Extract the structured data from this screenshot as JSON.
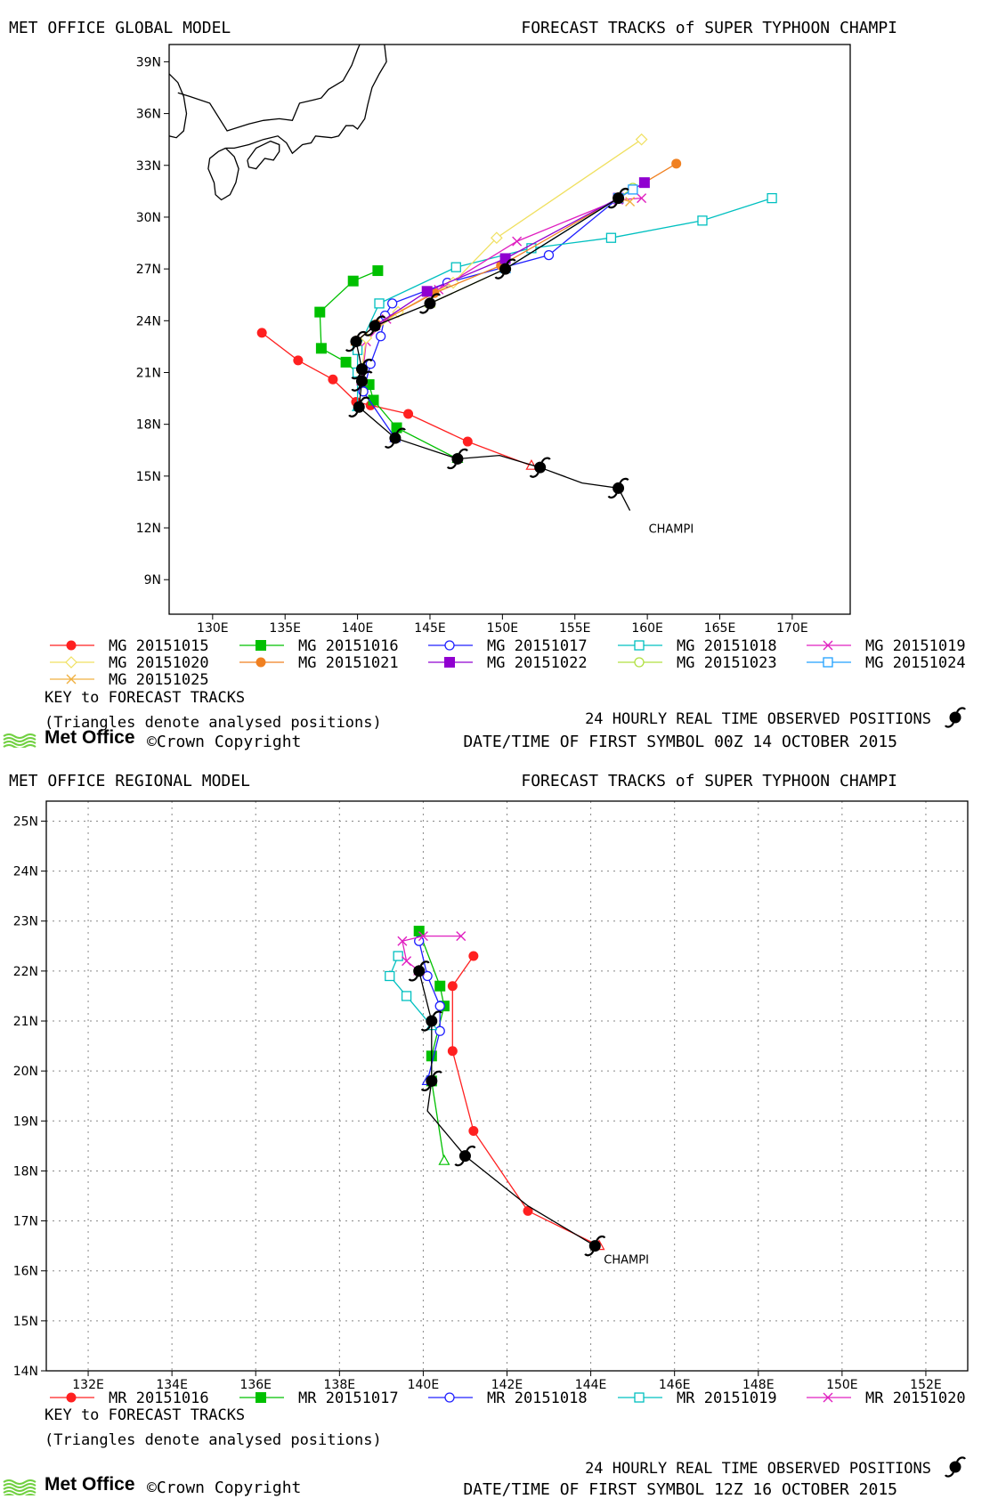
{
  "global": {
    "model_title": "MET OFFICE GLOBAL MODEL",
    "forecast_title": "FORECAST TRACKS of SUPER TYPHOON CHAMPI",
    "storm_label": "CHAMPI",
    "key_title": "KEY to FORECAST TRACKS",
    "triangles_note": "(Triangles denote analysed positions)",
    "observed_note": "24 HOURLY REAL TIME OBSERVED POSITIONS",
    "first_symbol": "DATE/TIME OF FIRST SYMBOL 00Z 14 OCTOBER 2015",
    "logo": "Met Office",
    "copyright": "©Crown Copyright"
  },
  "regional": {
    "model_title": "MET OFFICE REGIONAL MODEL",
    "forecast_title": "FORECAST TRACKS of SUPER TYPHOON CHAMPI",
    "storm_label": "CHAMPI",
    "key_title": "KEY to FORECAST TRACKS",
    "triangles_note": "(Triangles denote analysed positions)",
    "observed_note": "24 HOURLY REAL TIME OBSERVED POSITIONS",
    "first_symbol": "DATE/TIME OF FIRST SYMBOL 12Z 16 OCTOBER 2015",
    "logo": "Met Office",
    "copyright": "©Crown Copyright"
  },
  "chart_data": [
    {
      "type": "line",
      "xlim": [
        127,
        174
      ],
      "ylim": [
        7,
        40
      ],
      "x_ticks": [
        130,
        135,
        140,
        145,
        150,
        155,
        160,
        165,
        170
      ],
      "x_tick_labels": [
        "130E",
        "135E",
        "140E",
        "145E",
        "150E",
        "155E",
        "160E",
        "165E",
        "170E"
      ],
      "y_ticks": [
        9,
        12,
        15,
        18,
        21,
        24,
        27,
        30,
        33,
        36,
        39
      ],
      "y_tick_labels": [
        "9N",
        "12N",
        "15N",
        "18N",
        "21N",
        "24N",
        "27N",
        "30N",
        "33N",
        "36N",
        "39N"
      ],
      "grid": false,
      "observed": {
        "color": "#000000",
        "points": [
          [
            158.8,
            13.0
          ],
          [
            158,
            14.3
          ],
          [
            155.5,
            14.6
          ],
          [
            152.6,
            15.5
          ],
          [
            149.8,
            16.2
          ],
          [
            146.9,
            16.0
          ],
          [
            142.6,
            17.2
          ],
          [
            140.1,
            19.0
          ],
          [
            140.3,
            20.5
          ],
          [
            140.3,
            21.2
          ],
          [
            139.9,
            22.8
          ],
          [
            141.2,
            23.7
          ],
          [
            145.0,
            25.0
          ],
          [
            150.2,
            27.0
          ],
          [
            158.0,
            31.1
          ]
        ],
        "symbols": [
          [
            158,
            14.3
          ],
          [
            152.6,
            15.5
          ],
          [
            146.9,
            16.0
          ],
          [
            142.6,
            17.2
          ],
          [
            140.1,
            19.0
          ],
          [
            140.3,
            20.5
          ],
          [
            140.3,
            21.2
          ],
          [
            139.9,
            22.8
          ],
          [
            141.2,
            23.7
          ],
          [
            145.0,
            25.0
          ],
          [
            150.2,
            27.0
          ],
          [
            158.0,
            31.1
          ]
        ]
      },
      "series": [
        {
          "name": "MG 20151015",
          "color": "#ff2020",
          "marker": "dot",
          "points": [
            [
              152.0,
              15.6
            ],
            [
              147.6,
              17.0
            ],
            [
              143.5,
              18.6
            ],
            [
              140.9,
              19.1
            ],
            [
              139.9,
              19.3
            ],
            [
              138.3,
              20.6
            ],
            [
              135.9,
              21.7
            ],
            [
              133.4,
              23.3
            ]
          ]
        },
        {
          "name": "MG 20151016",
          "color": "#00c000",
          "marker": "square",
          "points": [
            [
              146.9,
              16.0
            ],
            [
              142.7,
              17.8
            ],
            [
              141.1,
              19.4
            ],
            [
              140.8,
              20.3
            ],
            [
              139.2,
              21.6
            ],
            [
              137.5,
              22.4
            ],
            [
              137.4,
              24.5
            ],
            [
              139.7,
              26.3
            ],
            [
              141.4,
              26.9
            ]
          ]
        },
        {
          "name": "MG 20151017",
          "color": "#2020ff",
          "marker": "circle",
          "points": [
            [
              142.6,
              17.2
            ],
            [
              140.4,
              19.9
            ],
            [
              140.9,
              21.5
            ],
            [
              141.6,
              23.1
            ],
            [
              141.9,
              24.3
            ],
            [
              142.4,
              25.0
            ],
            [
              146.2,
              26.2
            ],
            [
              153.2,
              27.8
            ],
            [
              158.0,
              31.1
            ]
          ]
        },
        {
          "name": "MG 20151018",
          "color": "#00c0c0",
          "marker": "open_square",
          "points": [
            [
              140.0,
              19.0
            ],
            [
              140.0,
              21.0
            ],
            [
              140.0,
              22.3
            ],
            [
              141.5,
              25.0
            ],
            [
              146.8,
              27.1
            ],
            [
              152.0,
              28.2
            ],
            [
              157.5,
              28.8
            ],
            [
              163.8,
              29.8
            ],
            [
              168.6,
              31.1
            ]
          ]
        },
        {
          "name": "MG 20151019",
          "color": "#e020c0",
          "marker": "x",
          "points": [
            [
              140.3,
              20.5
            ],
            [
              140.6,
              22.8
            ],
            [
              142.0,
              24.1
            ],
            [
              145.6,
              25.8
            ],
            [
              151.0,
              28.6
            ],
            [
              158.0,
              31.0
            ],
            [
              159.6,
              31.1
            ]
          ]
        },
        {
          "name": "MG 20151020",
          "color": "#f0e060",
          "marker": "diamond",
          "points": [
            [
              140.3,
              21.2
            ],
            [
              140.6,
              23.0
            ],
            [
              142.8,
              24.5
            ],
            [
              146.6,
              26.2
            ],
            [
              149.6,
              28.8
            ],
            [
              159.6,
              34.5
            ]
          ]
        },
        {
          "name": "MG 20151021",
          "color": "#f08020",
          "marker": "dot",
          "points": [
            [
              139.9,
              22.8
            ],
            [
              141.3,
              23.8
            ],
            [
              145.3,
              25.6
            ],
            [
              149.9,
              27.2
            ],
            [
              158.0,
              31.1
            ],
            [
              162.0,
              33.1
            ]
          ]
        },
        {
          "name": "MG 20151022",
          "color": "#9000d0",
          "marker": "square",
          "points": [
            [
              141.2,
              23.7
            ],
            [
              144.8,
              25.7
            ],
            [
              150.2,
              27.6
            ],
            [
              158.0,
              31.1
            ],
            [
              159.8,
              32.0
            ]
          ]
        },
        {
          "name": "MG 20151023",
          "color": "#b0e040",
          "marker": "open_circle",
          "points": [
            [
              145.0,
              25.0
            ],
            [
              150.2,
              27.0
            ],
            [
              158.0,
              31.1
            ],
            [
              159.0,
              31.7
            ]
          ]
        },
        {
          "name": "MG 20151024",
          "color": "#20a0ff",
          "marker": "open_square",
          "points": [
            [
              150.2,
              27.0
            ],
            [
              158.0,
              31.1
            ],
            [
              159.0,
              31.6
            ]
          ]
        },
        {
          "name": "MG 20151025",
          "color": "#f0b040",
          "marker": "x",
          "points": [
            [
              158.0,
              31.1
            ],
            [
              158.8,
              30.9
            ]
          ]
        }
      ]
    },
    {
      "type": "line",
      "xlim": [
        131,
        153
      ],
      "ylim": [
        14,
        25.4
      ],
      "x_ticks": [
        132,
        134,
        136,
        138,
        140,
        142,
        144,
        146,
        148,
        150,
        152
      ],
      "x_tick_labels": [
        "132E",
        "134E",
        "136E",
        "138E",
        "140E",
        "142E",
        "144E",
        "146E",
        "148E",
        "150E",
        "152E"
      ],
      "y_ticks": [
        14,
        15,
        16,
        17,
        18,
        19,
        20,
        21,
        22,
        23,
        24,
        25
      ],
      "y_tick_labels": [
        "14N",
        "15N",
        "16N",
        "17N",
        "18N",
        "19N",
        "20N",
        "21N",
        "22N",
        "23N",
        "24N",
        " 25N"
      ],
      "grid": true,
      "observed": {
        "color": "#000000",
        "points": [
          [
            144.1,
            16.5
          ],
          [
            142.5,
            17.3
          ],
          [
            141.0,
            18.3
          ],
          [
            140.1,
            19.2
          ],
          [
            140.2,
            19.8
          ],
          [
            140.2,
            21.0
          ],
          [
            139.9,
            22.0
          ]
        ],
        "symbols": [
          [
            144.1,
            16.5
          ],
          [
            141.0,
            18.3
          ],
          [
            140.2,
            19.8
          ],
          [
            140.2,
            21.0
          ],
          [
            139.9,
            22.0
          ]
        ]
      },
      "series": [
        {
          "name": "MR 20151016",
          "color": "#ff2020",
          "marker": "dot",
          "points": [
            [
              144.2,
              16.5
            ],
            [
              142.5,
              17.2
            ],
            [
              141.2,
              18.8
            ],
            [
              140.7,
              20.4
            ],
            [
              140.7,
              21.7
            ],
            [
              141.2,
              22.3
            ]
          ]
        },
        {
          "name": "MR 20151017",
          "color": "#00c000",
          "marker": "square",
          "points": [
            [
              140.5,
              18.2
            ],
            [
              140.2,
              19.8
            ],
            [
              140.2,
              20.3
            ],
            [
              140.5,
              21.3
            ],
            [
              140.4,
              21.7
            ],
            [
              139.9,
              22.8
            ]
          ]
        },
        {
          "name": "MR 20151018",
          "color": "#2020ff",
          "marker": "circle",
          "points": [
            [
              140.1,
              19.8
            ],
            [
              140.4,
              20.8
            ],
            [
              140.4,
              21.3
            ],
            [
              140.1,
              21.9
            ],
            [
              139.9,
              22.6
            ]
          ]
        },
        {
          "name": "MR 20151019",
          "color": "#00c0c0",
          "marker": "open_square",
          "points": [
            [
              140.2,
              20.9
            ],
            [
              139.6,
              21.5
            ],
            [
              139.2,
              21.9
            ],
            [
              139.4,
              22.3
            ]
          ]
        },
        {
          "name": "MR 20151020",
          "color": "#e020c0",
          "marker": "x",
          "points": [
            [
              139.9,
              22.0
            ],
            [
              139.6,
              22.2
            ],
            [
              139.5,
              22.6
            ],
            [
              140.0,
              22.7
            ],
            [
              140.9,
              22.7
            ]
          ]
        }
      ]
    }
  ]
}
